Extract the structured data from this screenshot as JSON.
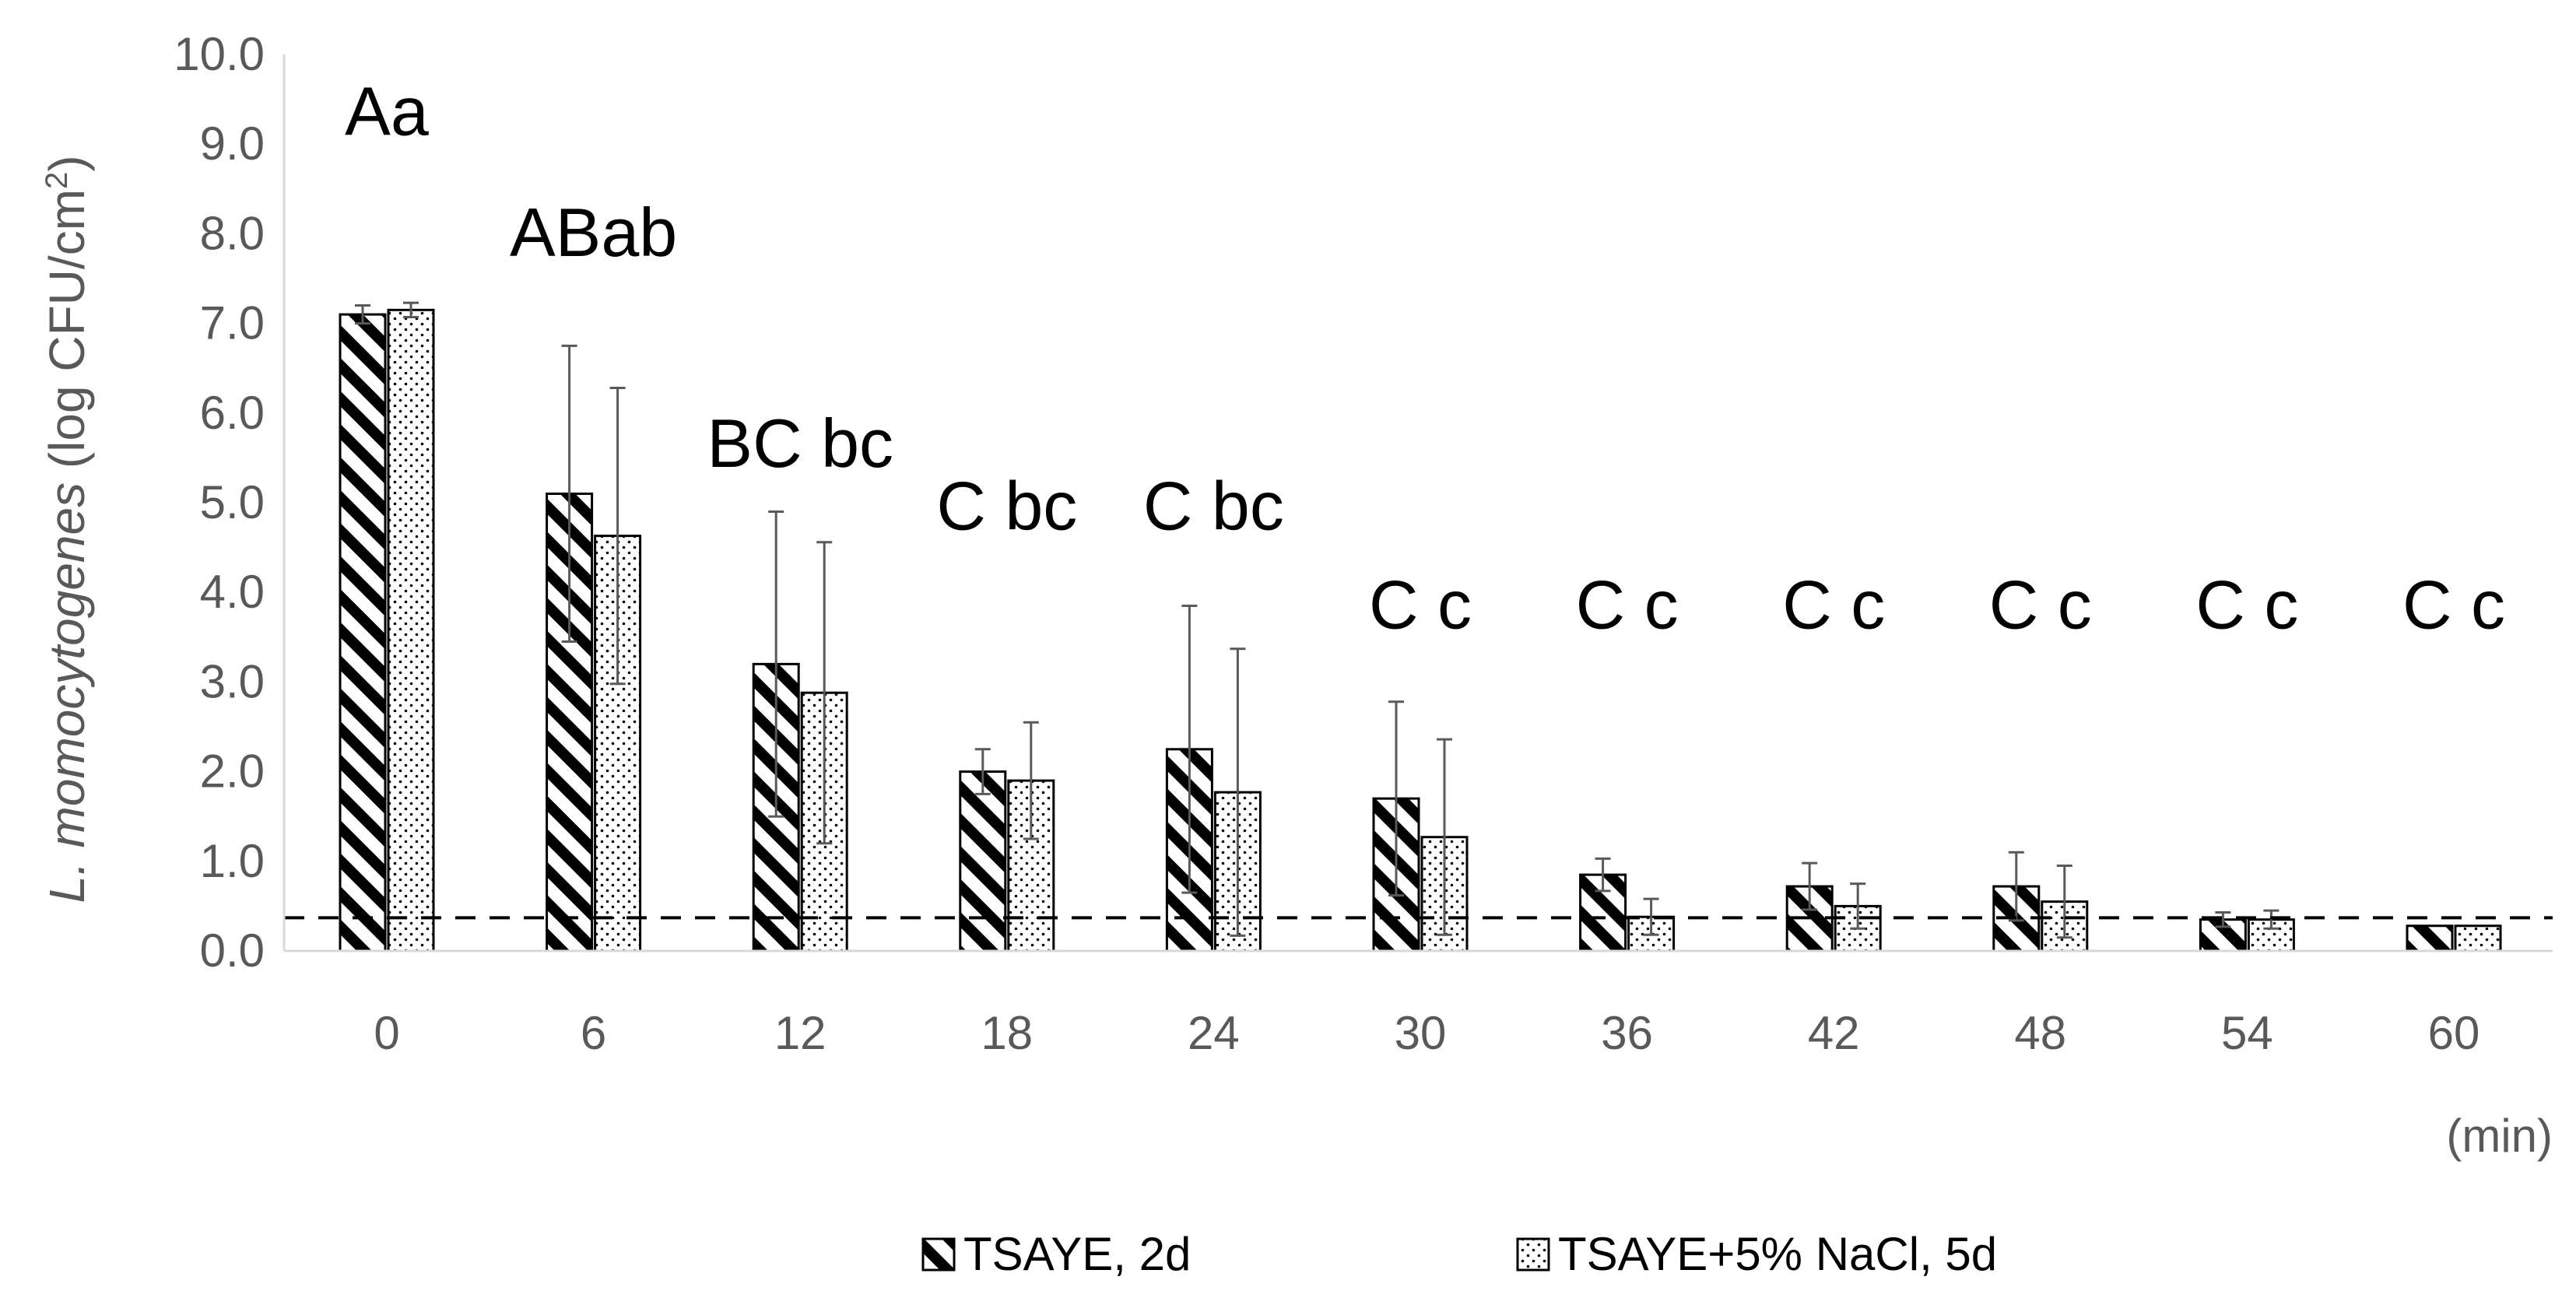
{
  "chart_data": {
    "type": "bar",
    "title": "",
    "ylabel_italic": "L. momocytogenes",
    "ylabel_rest": " (log CFU/cm",
    "ylabel_sup": "2",
    "ylabel_close": ")",
    "xlabel": "(min)",
    "ylim": [
      0,
      10
    ],
    "y_ticks": [
      "0.0",
      "1.0",
      "2.0",
      "3.0",
      "4.0",
      "5.0",
      "6.0",
      "7.0",
      "8.0",
      "9.0",
      "10.0"
    ],
    "categories": [
      "0",
      "6",
      "12",
      "18",
      "24",
      "30",
      "36",
      "42",
      "48",
      "54",
      "60"
    ],
    "detection_limit": 0.37,
    "grid": false,
    "legend_position": "bottom",
    "series": [
      {
        "name": "TSAYE, 2d",
        "pattern": "diagonal-stripes",
        "values": [
          7.1,
          5.1,
          3.2,
          2.0,
          2.25,
          1.7,
          0.85,
          0.72,
          0.72,
          0.35,
          0.28
        ],
        "errors": [
          0.1,
          1.65,
          1.7,
          0.25,
          1.6,
          1.08,
          0.18,
          0.26,
          0.38,
          0.08,
          0.0
        ]
      },
      {
        "name": "TSAYE+5% NaCl, 5d",
        "pattern": "dots",
        "values": [
          7.15,
          4.63,
          2.88,
          1.9,
          1.77,
          1.27,
          0.38,
          0.5,
          0.55,
          0.35,
          0.28
        ],
        "errors": [
          0.08,
          1.65,
          1.68,
          0.65,
          1.6,
          1.09,
          0.2,
          0.25,
          0.4,
          0.1,
          0.0
        ]
      }
    ],
    "annotations": [
      {
        "category": "0",
        "text": "Aa",
        "y": 9.1
      },
      {
        "category": "6",
        "text": "ABab",
        "y": 7.75
      },
      {
        "category": "12",
        "text": "BC bc",
        "y": 5.4
      },
      {
        "category": "18",
        "text": "C bc",
        "y": 4.7
      },
      {
        "category": "24",
        "text": "C bc",
        "y": 4.7
      },
      {
        "category": "30",
        "text": "C  c",
        "y": 3.6
      },
      {
        "category": "36",
        "text": "C  c",
        "y": 3.6
      },
      {
        "category": "42",
        "text": "C  c",
        "y": 3.6
      },
      {
        "category": "48",
        "text": "C  c",
        "y": 3.6
      },
      {
        "category": "54",
        "text": "C  c",
        "y": 3.6
      },
      {
        "category": "60",
        "text": "C  c",
        "y": 3.6
      }
    ],
    "colors": {
      "bar_stroke": "#000000",
      "bar_fill": "#ffffff",
      "axis": "#d9d9d9",
      "tick_text": "#595959",
      "dash_line": "#000000"
    }
  }
}
